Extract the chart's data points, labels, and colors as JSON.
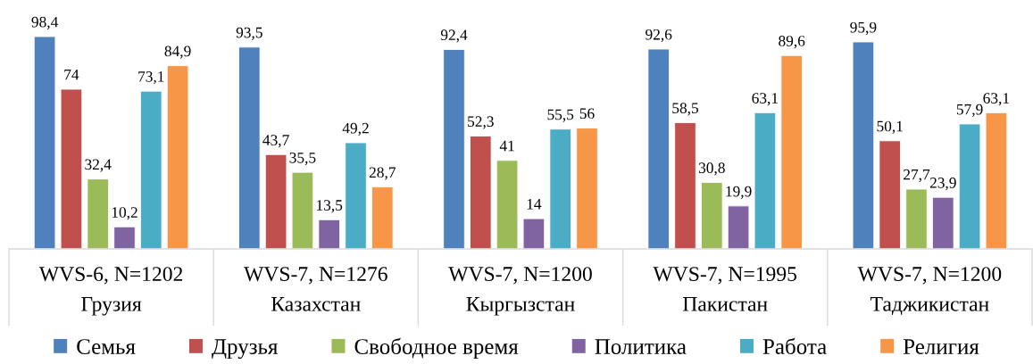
{
  "chart_data": {
    "type": "bar",
    "categories": [
      "WVS-6, N=1202\nГрузия",
      "WVS-7, N=1276\nКазахстан",
      "WVS-7, N=1200\nКыргызстан",
      "WVS-7, N=1995\nПакистан",
      "WVS-7, N=1200\nТаджикистан"
    ],
    "series": [
      {
        "name": "Семья",
        "color": "#4f81bd",
        "values": [
          98.4,
          93.5,
          92.4,
          92.6,
          95.9
        ],
        "value_labels": [
          "98,4",
          "93,5",
          "92,4",
          "92,6",
          "95,9"
        ]
      },
      {
        "name": "Друзья",
        "color": "#c0504d",
        "values": [
          74,
          43.7,
          52.3,
          58.5,
          50.1
        ],
        "value_labels": [
          "74",
          "43,7",
          "52,3",
          "58,5",
          "50,1"
        ]
      },
      {
        "name": "Свободное время",
        "color": "#9bbb59",
        "values": [
          32.4,
          35.5,
          41,
          30.8,
          27.7
        ],
        "value_labels": [
          "32,4",
          "35,5",
          "41",
          "30,8",
          "27,7"
        ]
      },
      {
        "name": "Политика",
        "color": "#8064a2",
        "values": [
          10.2,
          13.5,
          14,
          19.9,
          23.9
        ],
        "value_labels": [
          "10,2",
          "13,5",
          "14",
          "19,9",
          "23,9"
        ]
      },
      {
        "name": "Работа",
        "color": "#4bacc6",
        "values": [
          73.1,
          49.2,
          55.5,
          63.1,
          57.9
        ],
        "value_labels": [
          "73,1",
          "49,2",
          "55,5",
          "63,1",
          "57,9"
        ]
      },
      {
        "name": "Религия",
        "color": "#f79646",
        "values": [
          84.9,
          28.7,
          56,
          89.6,
          63.1
        ],
        "value_labels": [
          "84,9",
          "28,7",
          "56",
          "89,6",
          "63,1"
        ]
      }
    ],
    "tick_labels": "x",
    "legend": "bottom"
  }
}
